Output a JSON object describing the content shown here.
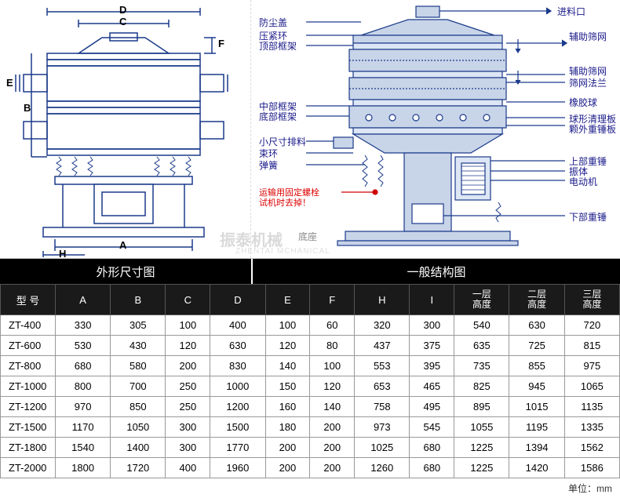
{
  "diagrams": {
    "left_title": "外形尺寸图",
    "right_title": "一般结构图",
    "watermark": "振泰机械",
    "watermark_sub": "ZHENTAI MCHANICAL",
    "left_dims": {
      "D": "D",
      "C": "C",
      "F": "F",
      "E": "E",
      "B": "B",
      "A": "A",
      "H": "H"
    },
    "right_labels": {
      "dust_cover": "防尘盖",
      "clamp_ring": "压紧环",
      "top_frame": "顶部框架",
      "mid_frame": "中部框架",
      "bottom_frame": "底部框架",
      "small_discharge": "小尺寸排料",
      "bundle_ring": "束环",
      "spring": "弹簧",
      "transport_bolt": "运输用固定螺栓",
      "transport_bolt2": "试机时去掉！",
      "base": "底座",
      "feed_inlet": "进料口",
      "aux_screen1": "辅助筛网",
      "aux_screen2": "辅助筛网",
      "screen_flange": "筛网法兰",
      "rubber_ball": "橡胶球",
      "ball_clean": "球形清理板",
      "fine_hammer": "颗外重锤板",
      "upper_hammer": "上部重锤",
      "vibrator": "振体",
      "motor": "电动机",
      "lower_hammer": "下部重锤"
    }
  },
  "table": {
    "headers": [
      "型 号",
      "A",
      "B",
      "C",
      "D",
      "E",
      "F",
      "H",
      "I",
      "一层\n高度",
      "二层\n高度",
      "三层\n高度"
    ],
    "rows": [
      [
        "ZT-400",
        "330",
        "305",
        "100",
        "400",
        "100",
        "60",
        "320",
        "300",
        "540",
        "630",
        "720"
      ],
      [
        "ZT-600",
        "530",
        "430",
        "120",
        "630",
        "120",
        "80",
        "437",
        "375",
        "635",
        "725",
        "815"
      ],
      [
        "ZT-800",
        "680",
        "580",
        "200",
        "830",
        "140",
        "100",
        "553",
        "395",
        "735",
        "855",
        "975"
      ],
      [
        "ZT-1000",
        "800",
        "700",
        "250",
        "1000",
        "150",
        "120",
        "653",
        "465",
        "825",
        "945",
        "1065"
      ],
      [
        "ZT-1200",
        "970",
        "850",
        "250",
        "1200",
        "160",
        "140",
        "758",
        "495",
        "895",
        "1015",
        "1135"
      ],
      [
        "ZT-1500",
        "1170",
        "1050",
        "300",
        "1500",
        "180",
        "200",
        "973",
        "545",
        "1055",
        "1195",
        "1335"
      ],
      [
        "ZT-1800",
        "1540",
        "1400",
        "300",
        "1770",
        "200",
        "200",
        "1025",
        "680",
        "1225",
        "1394",
        "1562"
      ],
      [
        "ZT-2000",
        "1800",
        "1720",
        "400",
        "1960",
        "200",
        "200",
        "1260",
        "680",
        "1225",
        "1420",
        "1586"
      ]
    ],
    "unit": "单位：mm"
  },
  "colors": {
    "line_blue": "#1a3a8a",
    "line_dark": "#002255",
    "fill_light": "#c8d4e8",
    "red": "#d00000",
    "gray": "#888888"
  }
}
